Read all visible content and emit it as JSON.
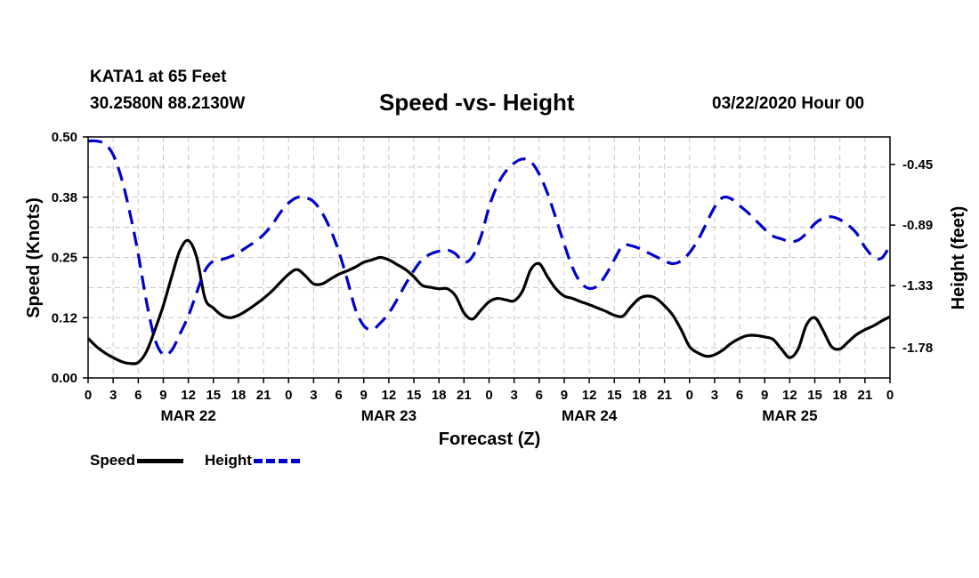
{
  "header": {
    "station": "KATA1 at 65 Feet",
    "location": "30.2580N 88.2130W",
    "title": "Speed -vs- Height",
    "datetime": "03/22/2020 Hour 00"
  },
  "legend": {
    "speed_label": "Speed",
    "height_label": "Height"
  },
  "colors": {
    "speed": "#000000",
    "height": "#0000cc",
    "grid": "#c8c8c8"
  },
  "chart_data": {
    "type": "line",
    "title": "Speed -vs- Height",
    "xlabel": "Forecast (Z)",
    "ylabel": "Speed (Knots)",
    "y2label": "Height (feet)",
    "xlim": [
      0,
      96
    ],
    "ylim": [
      0,
      0.5
    ],
    "y2lim": [
      -2.0,
      -0.25
    ],
    "grid": true,
    "x_ticks": [
      0,
      3,
      6,
      9,
      12,
      15,
      18,
      21,
      24,
      27,
      30,
      33,
      36,
      39,
      42,
      45,
      48,
      51,
      54,
      57,
      60,
      63,
      66,
      69,
      72,
      75,
      78,
      81,
      84,
      87,
      90,
      93,
      96
    ],
    "x_tick_labels": [
      "0",
      "3",
      "6",
      "9",
      "12",
      "15",
      "18",
      "21",
      "0",
      "3",
      "6",
      "9",
      "12",
      "15",
      "18",
      "21",
      "0",
      "3",
      "6",
      "9",
      "12",
      "15",
      "18",
      "21",
      "0",
      "3",
      "6",
      "9",
      "12",
      "15",
      "18",
      "21",
      "0"
    ],
    "day_labels": [
      {
        "x": 12,
        "label": "MAR 22"
      },
      {
        "x": 36,
        "label": "MAR 23"
      },
      {
        "x": 60,
        "label": "MAR 24"
      },
      {
        "x": 84,
        "label": "MAR 25"
      }
    ],
    "y_ticks": [
      0.0,
      0.125,
      0.25,
      0.375,
      0.5
    ],
    "y_tick_labels": [
      "0.00",
      "0.12",
      "0.25",
      "0.38",
      "0.50"
    ],
    "y2_ticks": [
      -0.45,
      -0.89,
      -1.33,
      -1.78
    ],
    "y2_tick_labels": [
      "-0.45",
      "-0.89",
      "-1.33",
      "-1.78"
    ],
    "series": [
      {
        "name": "Speed",
        "axis": "left",
        "style": "solid",
        "x": [
          0,
          1,
          2,
          3,
          4,
          5,
          6,
          7,
          8,
          9,
          10,
          11,
          12,
          13,
          14,
          15,
          16,
          17,
          18,
          19,
          20,
          21,
          22,
          23,
          24,
          25,
          26,
          27,
          28,
          29,
          30,
          31,
          32,
          33,
          34,
          35,
          36,
          37,
          38,
          39,
          40,
          41,
          42,
          43,
          44,
          45,
          46,
          47,
          48,
          49,
          50,
          51,
          52,
          53,
          54,
          55,
          56,
          57,
          58,
          59,
          60,
          61,
          62,
          63,
          64,
          65,
          66,
          67,
          68,
          69,
          70,
          71,
          72,
          73,
          74,
          75,
          76,
          77,
          78,
          79,
          80,
          81,
          82,
          83,
          84,
          85,
          86,
          87,
          88,
          89,
          90,
          91,
          92,
          93,
          94,
          95,
          96
        ],
        "values": [
          0.082,
          0.065,
          0.052,
          0.042,
          0.034,
          0.03,
          0.032,
          0.055,
          0.1,
          0.15,
          0.21,
          0.265,
          0.285,
          0.25,
          0.165,
          0.145,
          0.13,
          0.125,
          0.13,
          0.14,
          0.152,
          0.165,
          0.18,
          0.198,
          0.215,
          0.225,
          0.212,
          0.195,
          0.195,
          0.205,
          0.215,
          0.222,
          0.23,
          0.24,
          0.245,
          0.25,
          0.245,
          0.235,
          0.225,
          0.21,
          0.192,
          0.188,
          0.185,
          0.185,
          0.17,
          0.135,
          0.122,
          0.14,
          0.158,
          0.165,
          0.162,
          0.16,
          0.18,
          0.225,
          0.237,
          0.21,
          0.185,
          0.17,
          0.165,
          0.158,
          0.152,
          0.145,
          0.138,
          0.13,
          0.128,
          0.148,
          0.165,
          0.17,
          0.165,
          0.15,
          0.13,
          0.1,
          0.065,
          0.052,
          0.045,
          0.048,
          0.058,
          0.072,
          0.082,
          0.088,
          0.088,
          0.085,
          0.08,
          0.06,
          0.042,
          0.06,
          0.11,
          0.125,
          0.098,
          0.065,
          0.06,
          0.075,
          0.09,
          0.1,
          0.108,
          0.118,
          0.127
        ]
      },
      {
        "name": "Height",
        "axis": "right",
        "style": "dashed",
        "x": [
          0,
          1,
          2,
          3,
          4,
          5,
          6,
          7,
          8,
          9,
          10,
          11,
          12,
          13,
          14,
          15,
          16,
          17,
          18,
          19,
          20,
          21,
          22,
          23,
          24,
          25,
          26,
          27,
          28,
          29,
          30,
          31,
          32,
          33,
          34,
          35,
          36,
          37,
          38,
          39,
          40,
          41,
          42,
          43,
          44,
          45,
          46,
          47,
          48,
          49,
          50,
          51,
          52,
          53,
          54,
          55,
          56,
          57,
          58,
          59,
          60,
          61,
          62,
          63,
          64,
          65,
          66,
          67,
          68,
          69,
          70,
          71,
          72,
          73,
          74,
          75,
          76,
          77,
          78,
          79,
          80,
          81,
          82,
          83,
          84,
          85,
          86,
          87,
          88,
          89,
          90,
          91,
          92,
          93,
          94,
          95,
          96
        ],
        "values": [
          -0.28,
          -0.28,
          -0.3,
          -0.38,
          -0.55,
          -0.8,
          -1.1,
          -1.45,
          -1.72,
          -1.83,
          -1.8,
          -1.68,
          -1.55,
          -1.38,
          -1.22,
          -1.15,
          -1.14,
          -1.12,
          -1.09,
          -1.05,
          -1.01,
          -0.96,
          -0.89,
          -0.8,
          -0.73,
          -0.69,
          -0.69,
          -0.72,
          -0.8,
          -0.92,
          -1.08,
          -1.28,
          -1.5,
          -1.62,
          -1.65,
          -1.6,
          -1.53,
          -1.43,
          -1.32,
          -1.22,
          -1.14,
          -1.1,
          -1.08,
          -1.07,
          -1.1,
          -1.16,
          -1.12,
          -0.98,
          -0.76,
          -0.6,
          -0.5,
          -0.44,
          -0.41,
          -0.43,
          -0.52,
          -0.66,
          -0.84,
          -1.03,
          -1.2,
          -1.31,
          -1.35,
          -1.33,
          -1.25,
          -1.14,
          -1.04,
          -1.04,
          -1.06,
          -1.09,
          -1.12,
          -1.15,
          -1.17,
          -1.15,
          -1.09,
          -1.0,
          -0.88,
          -0.76,
          -0.69,
          -0.7,
          -0.75,
          -0.8,
          -0.86,
          -0.92,
          -0.97,
          -0.99,
          -1.01,
          -1.0,
          -0.95,
          -0.88,
          -0.84,
          -0.83,
          -0.85,
          -0.89,
          -0.95,
          -1.05,
          -1.12,
          -1.13,
          -1.04
        ]
      }
    ]
  }
}
